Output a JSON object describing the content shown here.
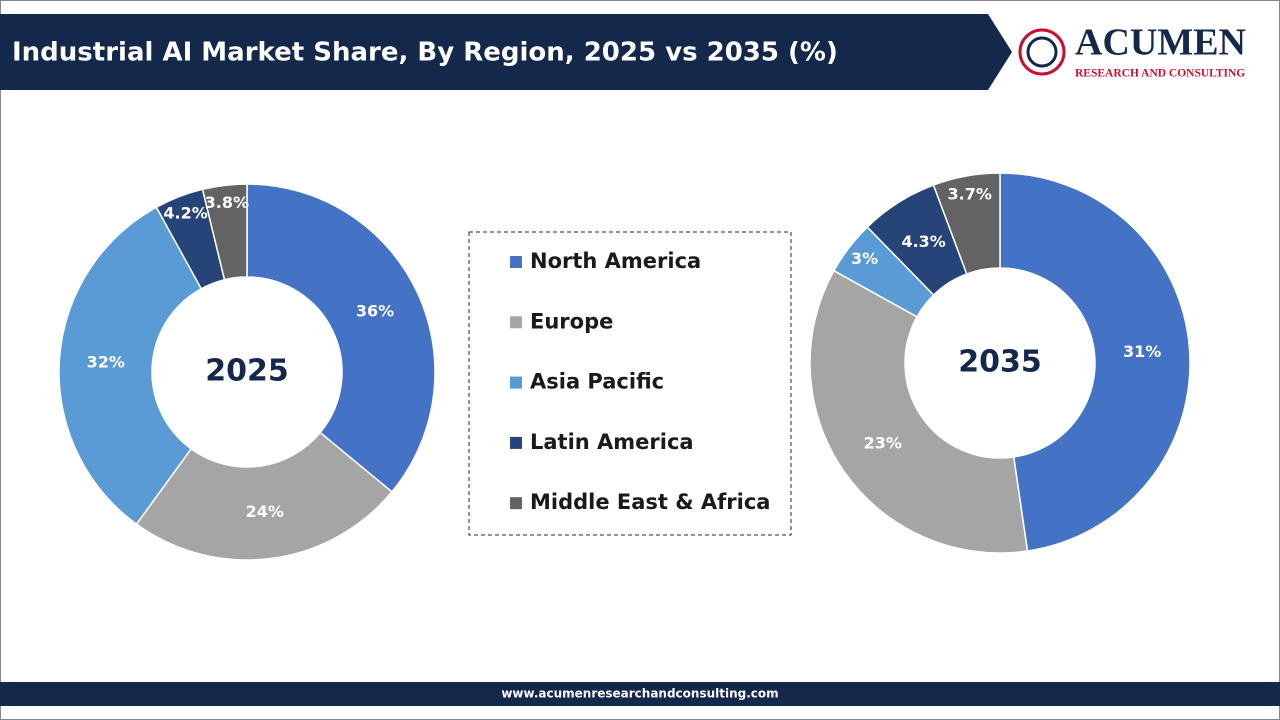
{
  "title": "Industrial AI Market Share, By Region, 2025 vs 2035 (%)",
  "logo": {
    "name": "ACUMEN",
    "tagline": "RESEARCH AND CONSULTING"
  },
  "footer": "www.acumenresearchandconsulting.com",
  "chart_data": [
    {
      "type": "pie",
      "center_label": "2025",
      "categories": [
        "North America",
        "Europe",
        "Asia Pacific",
        "Latin America",
        "Middle East & Africa"
      ],
      "colors": [
        "#4472c4",
        "#a5a5a5",
        "#5b9bd5",
        "#264478",
        "#636363"
      ],
      "values": [
        36,
        24,
        32,
        4.2,
        3.8
      ],
      "value_labels": [
        "36%",
        "24%",
        "32%",
        "4.2%",
        "3.8%"
      ]
    },
    {
      "type": "pie",
      "center_label": "2035",
      "categories": [
        "North America",
        "Europe",
        "Asia Pacific",
        "Latin America",
        "Middle East & Africa"
      ],
      "colors": [
        "#4472c4",
        "#a5a5a5",
        "#5b9bd5",
        "#264478",
        "#636363"
      ],
      "values": [
        31,
        23,
        3,
        4.3,
        3.7
      ],
      "value_labels": [
        "31%",
        "23%",
        "3%",
        "4.3%",
        "3.7%"
      ]
    }
  ]
}
